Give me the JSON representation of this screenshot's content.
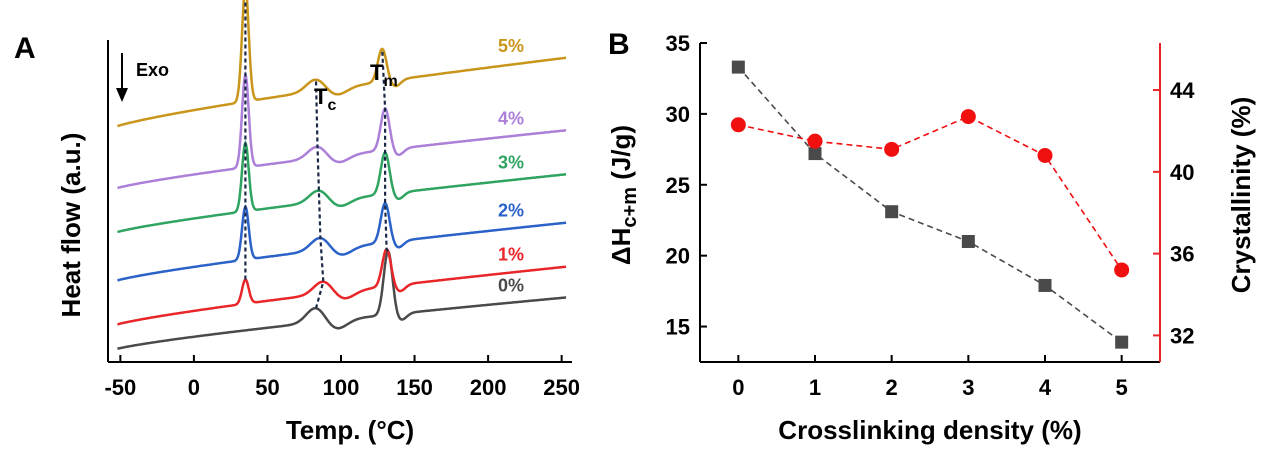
{
  "colors": {
    "c0": "#4a4a4a",
    "c1": "#e8262a",
    "c2": "#2a62c8",
    "c3": "#2fa460",
    "c4": "#ac7fd8",
    "c5": "#c9951a",
    "marker_left": "#4a4a4a",
    "marker_right": "#f01010",
    "right_axis": "#e8262a",
    "dashed_line": "#1b2a48"
  },
  "chart_data": [
    {
      "panel": "A",
      "type": "line",
      "xlabel": "Temp. (°C)",
      "ylabel": "Heat flow (a.u.)",
      "xlim": [
        -55,
        255
      ],
      "xticks": [
        -50,
        0,
        50,
        100,
        150,
        200,
        250
      ],
      "annotations": {
        "arrow_label": "Exo",
        "tc_main": "T",
        "tc_sub": "c",
        "tm_main": "T",
        "tm_sub": "m"
      },
      "series": [
        {
          "name": "0%",
          "offset": 0.0,
          "base_start": 0.0,
          "base_end": 1.2,
          "tc": 83,
          "tc_amp": 0.35,
          "tm": 132,
          "tm_amp": 1.45,
          "glass_amp": 0.0
        },
        {
          "name": "1%",
          "offset": 0.55,
          "base_start": 0.0,
          "base_end": 1.35,
          "tc": 88,
          "tc_amp": 0.3,
          "tm": 131,
          "tm_amp": 0.85,
          "glass_amp": 0.55
        },
        {
          "name": "2%",
          "offset": 1.55,
          "base_start": 0.0,
          "base_end": 1.35,
          "tc": 86,
          "tc_amp": 0.3,
          "tm": 130,
          "tm_amp": 0.9,
          "glass_amp": 1.2
        },
        {
          "name": "3%",
          "offset": 2.65,
          "base_start": 0.0,
          "base_end": 1.35,
          "tc": 85,
          "tc_amp": 0.28,
          "tm": 130,
          "tm_amp": 0.95,
          "glass_amp": 1.55
        },
        {
          "name": "4%",
          "offset": 3.65,
          "base_start": 0.0,
          "base_end": 1.35,
          "tc": 84,
          "tc_amp": 0.28,
          "tm": 130,
          "tm_amp": 0.95,
          "glass_amp": 2.1
        },
        {
          "name": "5%",
          "offset": 5.05,
          "base_start": 0.0,
          "base_end": 1.6,
          "tc": 83,
          "tc_amp": 0.28,
          "tm": 128,
          "tm_amp": 0.75,
          "glass_amp": 2.6
        }
      ]
    },
    {
      "panel": "B",
      "type": "scatter",
      "xlabel": "Crosslinking density (%)",
      "ylabel_left_main": "ΔH",
      "ylabel_left_sub": "c+m",
      "ylabel_left_unit": " (J/g)",
      "ylabel_right": "Crystallinity (%)",
      "xlim": [
        -0.5,
        5.5
      ],
      "ylim_left": [
        12.5,
        35
      ],
      "ylim_right": [
        30.7,
        46.3
      ],
      "xticks": [
        0,
        1,
        2,
        3,
        4,
        5
      ],
      "yticks_left": [
        15,
        20,
        25,
        30,
        35
      ],
      "yticks_right": [
        32,
        36,
        40,
        44
      ],
      "x": [
        0,
        1,
        2,
        3,
        4,
        5
      ],
      "series": [
        {
          "axis": "left",
          "marker": "square",
          "values": [
            33.3,
            27.2,
            23.1,
            21.0,
            17.9,
            13.9
          ]
        },
        {
          "axis": "right",
          "marker": "circle",
          "values": [
            42.3,
            41.5,
            41.1,
            42.7,
            40.8,
            35.2
          ]
        }
      ]
    }
  ]
}
